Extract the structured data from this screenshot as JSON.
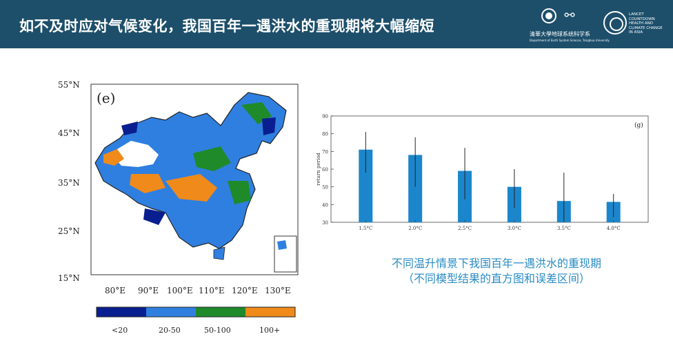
{
  "header": {
    "title": "如不及时应对气候变化，我国百年一遇洪水的重现期将大幅缩短",
    "dept_name": "清華大學地球系统科学系",
    "dept_sub": "Department of Earth System Science, Tsinghua University",
    "lancet_text": "LANCET COUNTDOWN\nHEALTH AND\nCLIMATE CHANGE\nIN ASIA"
  },
  "map": {
    "panel_label": "(e)",
    "lat_labels": [
      "55°N",
      "45°N",
      "35°N",
      "25°N",
      "15°N"
    ],
    "lon_labels": [
      "80°E",
      "90°E",
      "100°E",
      "110°E",
      "120°E",
      "130°E"
    ],
    "legend": [
      {
        "label": "<20",
        "color": "#0a1f8f"
      },
      {
        "label": "20-50",
        "color": "#2f7fe0"
      },
      {
        "label": "50-100",
        "color": "#1f8a2a"
      },
      {
        "label": "100+",
        "color": "#f08a1a"
      }
    ]
  },
  "chart_data": {
    "type": "bar",
    "panel_label": "(g)",
    "ylabel": "return period",
    "categories": [
      "1.5°C",
      "2.0°C",
      "2.5°C",
      "3.0°C",
      "3.5°C",
      "4.0°C"
    ],
    "values": [
      71,
      68,
      59,
      50,
      42,
      41.5
    ],
    "error_low": [
      58,
      50,
      43,
      38,
      30,
      33
    ],
    "error_high": [
      81,
      78,
      72,
      60,
      58,
      46
    ],
    "ylim": [
      30,
      90
    ],
    "yticks": [
      30,
      40,
      50,
      60,
      70,
      80,
      90
    ],
    "bar_color": "#1b86cc"
  },
  "caption": {
    "line1": "不同温升情景下我国百年一遇洪水的重现期",
    "line2": "（不同模型结果的直方图和误差区间）"
  }
}
